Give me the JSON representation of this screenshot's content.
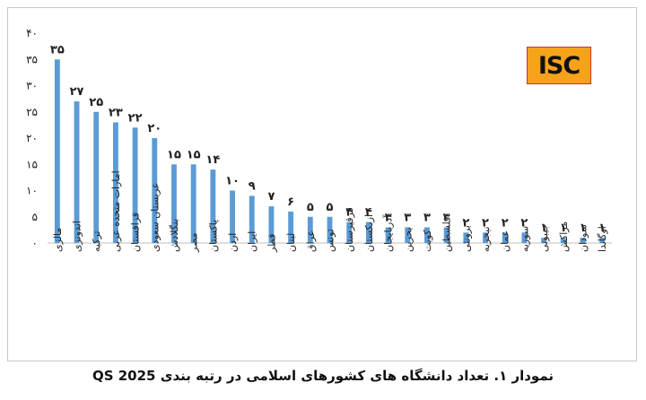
{
  "chart_data": {
    "type": "bar",
    "categories": [
      "مالزی",
      "اندونزی",
      "ترکیه",
      "امارات متحده عربی",
      "قزاقستان",
      "عربستان سعودی",
      "بنگلادش",
      "مصر",
      "پاکستان",
      "اردن",
      "ایران",
      "قطر",
      "لبنان",
      "عراق",
      "تونس",
      "قرقیزستان",
      "ازبکستان",
      "آذربایجان",
      "بحرین",
      "کویت",
      "فلسطین",
      "برونئی",
      "نیجریه",
      "عمان",
      "سوریه",
      "جیبوتی",
      "مراکش",
      "سودان",
      "اوگاندا"
    ],
    "values": [
      35,
      27,
      25,
      23,
      22,
      20,
      15,
      15,
      14,
      10,
      9,
      7,
      6,
      5,
      5,
      4,
      4,
      3,
      3,
      3,
      3,
      2,
      2,
      2,
      2,
      1,
      1,
      1,
      1
    ],
    "data_labels": [
      "۳۵",
      "۲۷",
      "۲۵",
      "۲۳",
      "۲۲",
      "۲۰",
      "۱۵",
      "۱۵",
      "۱۴",
      "۱۰",
      "۹",
      "۷",
      "۶",
      "۵",
      "۵",
      "۴",
      "۴",
      "۳",
      "۳",
      "۳",
      "۳",
      "۲",
      "۲",
      "۲",
      "۲",
      "۱",
      "۱",
      "۱",
      "۱"
    ],
    "ytick_values": [
      0,
      5,
      10,
      15,
      20,
      25,
      30,
      35,
      40
    ],
    "ytick_labels": [
      "۰",
      "۵",
      "۱۰",
      "۱۵",
      "۲۰",
      "۲۵",
      "۳۰",
      "۳۵",
      "۴۰"
    ],
    "ylim": [
      0,
      40
    ],
    "grid": false,
    "bar_color": "#5b9bd5"
  },
  "logo": {
    "text": "ISC",
    "bg_color": "#f7a21b",
    "border_color": "#c0392b"
  },
  "caption": "نمودار ۱. تعداد دانشگاه های کشورهای اسلامی در رتبه بندی QS 2025"
}
